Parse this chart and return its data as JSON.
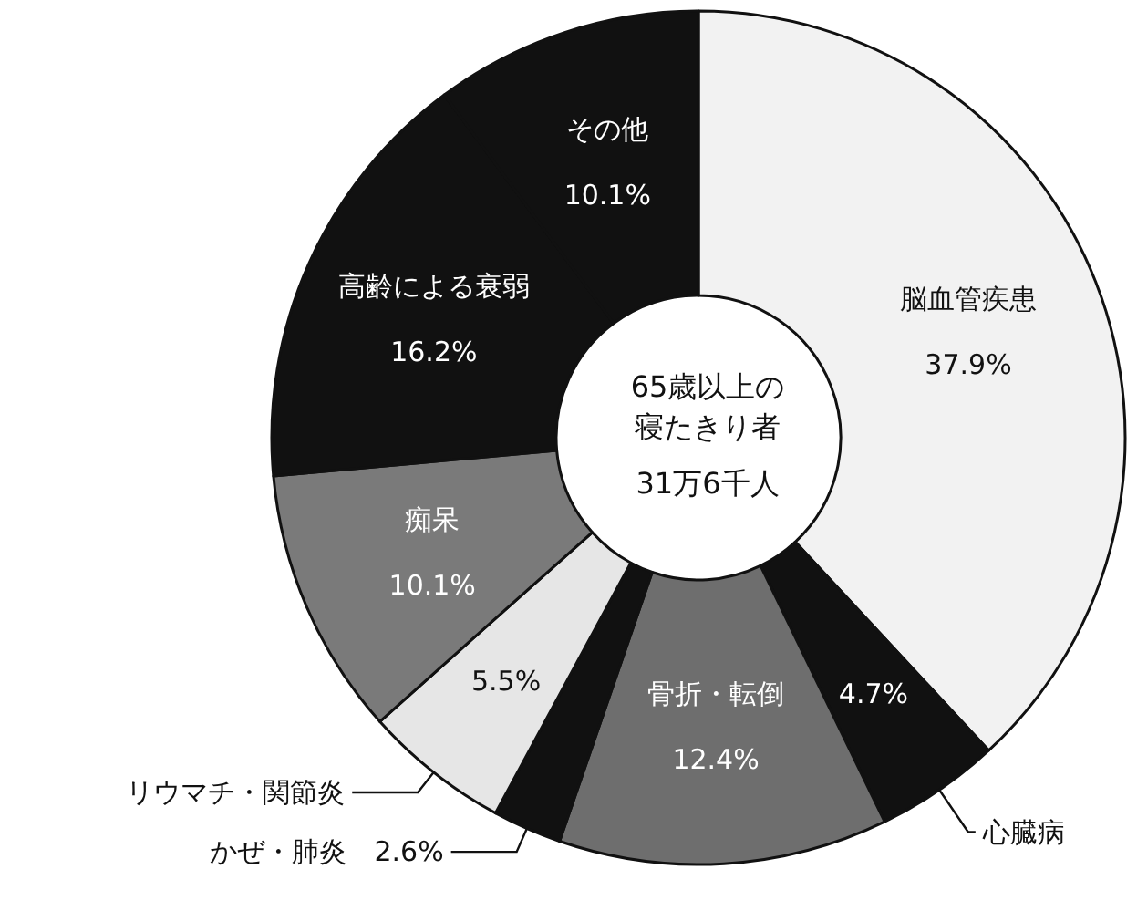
{
  "chart_data": {
    "type": "donut",
    "title": "65歳以上の寝たきり者",
    "subtitle": "31万6千人",
    "categories": [
      "脳血管疾患",
      "心臓病",
      "骨折・転倒",
      "かぜ・肺炎",
      "リウマチ・関節炎",
      "痴呆",
      "高齢による衰弱",
      "その他"
    ],
    "values": [
      37.9,
      4.7,
      12.4,
      2.6,
      5.5,
      10.1,
      16.2,
      10.1
    ],
    "value_labels": [
      "37.9%",
      "4.7%",
      "12.4%",
      "2.6%",
      "5.5%",
      "10.1%",
      "16.2%",
      "10.1%"
    ],
    "colors": [
      "#f2f2f2",
      "#111111",
      "#6e6e6e",
      "#111111",
      "#e6e6e6",
      "#7a7a7a",
      "#111111",
      "#111111"
    ],
    "legend": false
  }
}
